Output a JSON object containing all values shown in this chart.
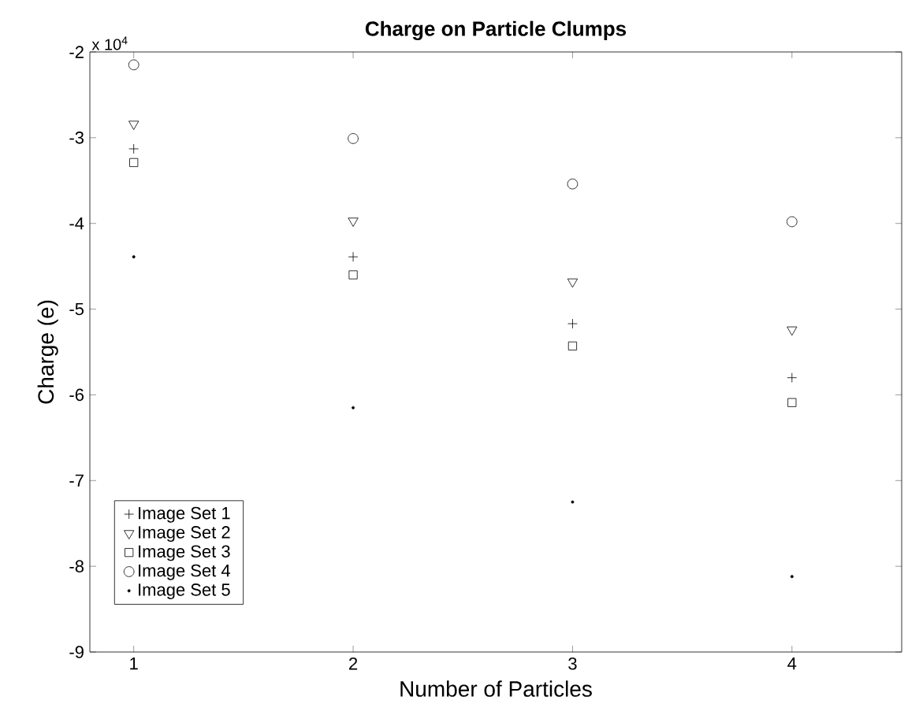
{
  "chart_data": {
    "type": "scatter",
    "title": "Charge on Particle Clumps",
    "xlabel": "Number of Particles",
    "ylabel": "Charge (e)",
    "annotations": [
      "x 10$^{4}$"
    ],
    "x": [
      1,
      2,
      3,
      4
    ],
    "series": [
      {
        "name": "Image Set 1",
        "color": "#000000",
        "marker": "cross",
        "values": [
          -3.13,
          -4.39,
          -5.17,
          -5.8
        ]
      },
      {
        "name": "Image Set 2",
        "color": "#000000",
        "marker": "triangle",
        "values": [
          -2.84,
          -3.97,
          -4.68,
          -5.24
        ]
      },
      {
        "name": "Image Set 3",
        "color": "#000000",
        "marker": "square",
        "values": [
          -3.29,
          -4.6,
          -5.43,
          -6.09
        ]
      },
      {
        "name": "Image Set 4",
        "color": "#000000",
        "marker": "circle",
        "values": [
          -2.15,
          -3.01,
          -3.54,
          -3.98
        ]
      },
      {
        "name": "Image Set 5",
        "color": "#000000",
        "marker": "point",
        "values": [
          -4.39,
          -6.15,
          -7.25,
          -8.12
        ]
      }
    ],
    "xlim": [
      0.8,
      4.5
    ],
    "ylim": [
      -9,
      -2
    ],
    "xticks": [
      1,
      2,
      3,
      4
    ],
    "yticks": [
      -9,
      -8,
      -7,
      -6,
      -5,
      -4,
      -3,
      -2
    ],
    "legend": "bottom left",
    "grid": false
  }
}
